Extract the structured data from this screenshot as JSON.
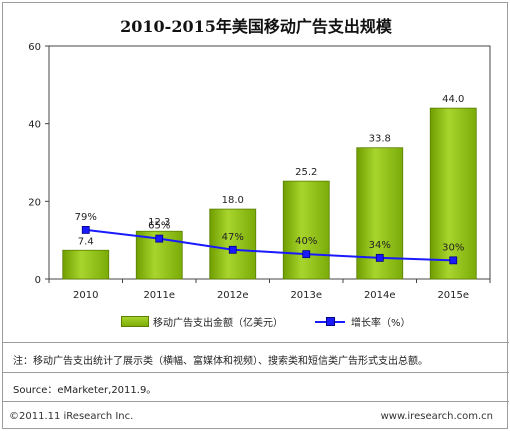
{
  "title": "2010-2015年美国移动广告支出规模",
  "chart_data": {
    "type": "bar",
    "categories": [
      "2010",
      "2011e",
      "2012e",
      "2013e",
      "2014e",
      "2015e"
    ],
    "series": [
      {
        "name": "移动广告支出金额（亿美元）",
        "type": "bar",
        "values": [
          7.4,
          12.3,
          18.0,
          25.2,
          33.8,
          44.0
        ],
        "labels": [
          "7.4",
          "12.3",
          "18.0",
          "25.2",
          "33.8",
          "44.0"
        ],
        "color": "#8cbf10"
      },
      {
        "name": "增长率（%）",
        "type": "line",
        "values": [
          79,
          65,
          47,
          40,
          34,
          30
        ],
        "labels": [
          "79%",
          "65%",
          "47%",
          "40%",
          "34%",
          "30%"
        ],
        "color": "#1a1aff"
      }
    ],
    "y_ticks": [
      "0",
      "20",
      "40",
      "60"
    ],
    "ylim": [
      0,
      60
    ],
    "line_scale_note": "",
    "grid": false,
    "legend_position": "bottom"
  },
  "legend": {
    "bar_label": "移动广告支出金额（亿美元）",
    "line_label": "增长率（%）"
  },
  "note": "注：移动广告支出统计了展示类（横幅、富媒体和视频）、搜索类和短信类广告形式支出总额。",
  "source": "Source：eMarketer,2011.9。",
  "copyright": "©2011.11 iResearch Inc.",
  "website": "www.iresearch.com.cn",
  "colors": {
    "bar": "#8cbf10",
    "line": "#1a1aff",
    "frame": "#9c9c9c"
  }
}
